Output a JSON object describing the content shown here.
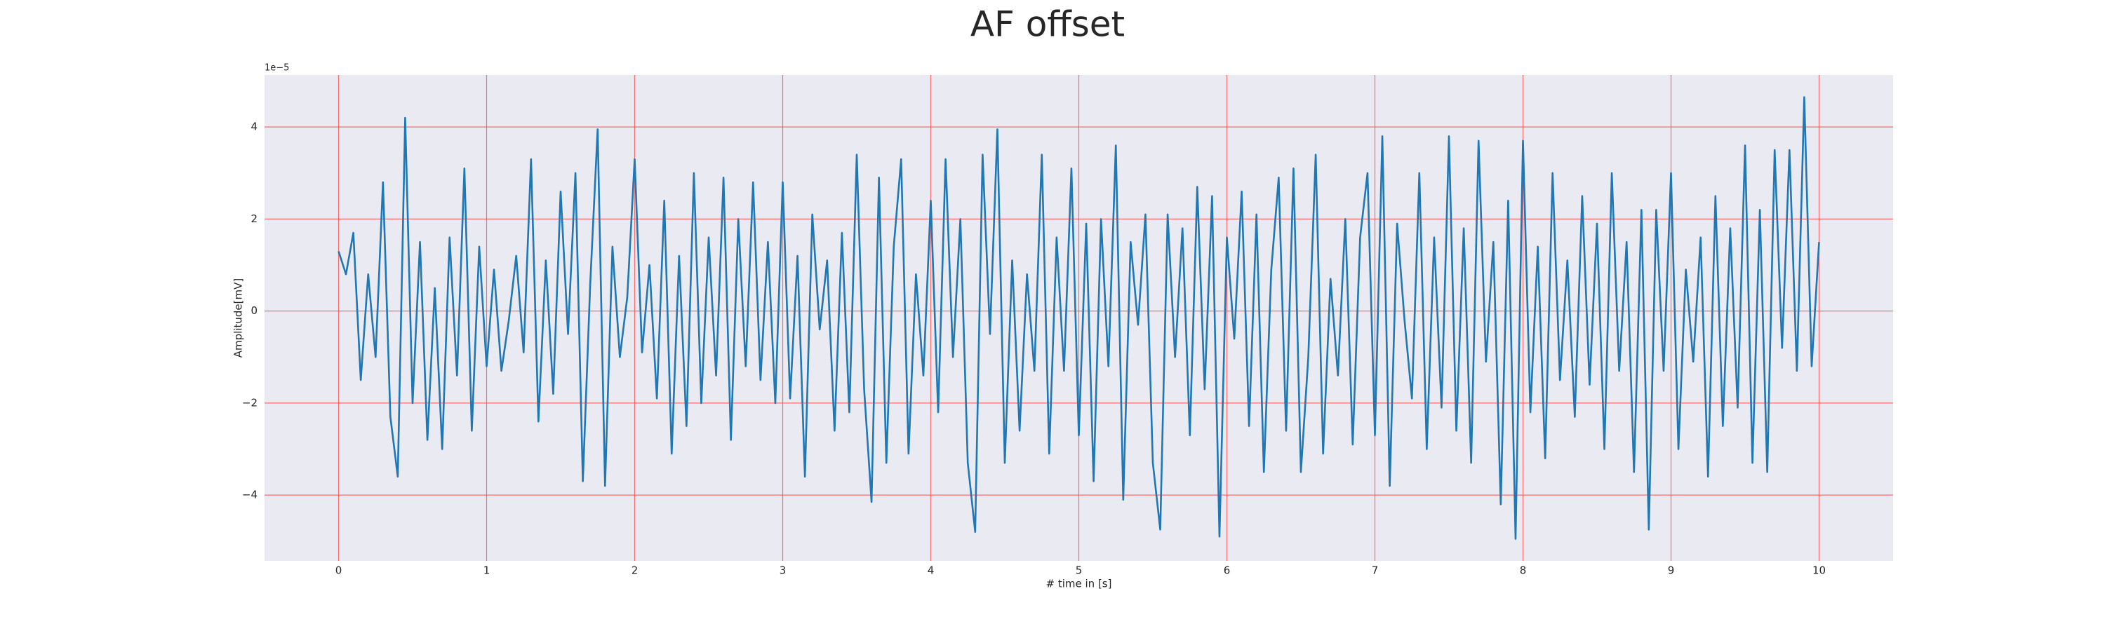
{
  "chart_data": {
    "type": "line",
    "title": "AF offset",
    "xlabel": "# time in [s]",
    "ylabel": "Amplitude[mV]",
    "offset_label": "1e−5",
    "xlim": [
      -0.5,
      10.5
    ],
    "ylim": [
      -5.43,
      5.13
    ],
    "xticks": [
      0,
      1,
      2,
      3,
      4,
      5,
      6,
      7,
      8,
      9,
      10
    ],
    "yticks": [
      {
        "value": -4,
        "label": "−4"
      },
      {
        "value": -2,
        "label": "−2"
      },
      0,
      2,
      4
    ],
    "grid": true,
    "grid_color": "#ff4d4d",
    "background": "#eaeaf2",
    "series": [
      {
        "color": "#1f77b4",
        "x": [
          0,
          0.05,
          0.1,
          0.15,
          0.2,
          0.25,
          0.3,
          0.35,
          0.4,
          0.45,
          0.5,
          0.55,
          0.6,
          0.65,
          0.7,
          0.75,
          0.8,
          0.85,
          0.9,
          0.95,
          1,
          1.05,
          1.1,
          1.15,
          1.2,
          1.25,
          1.3,
          1.35,
          1.4,
          1.45,
          1.5,
          1.55,
          1.6,
          1.65,
          1.7,
          1.75,
          1.8,
          1.85,
          1.9,
          1.95,
          2,
          2.05,
          2.1,
          2.15,
          2.2,
          2.25,
          2.3,
          2.35,
          2.4,
          2.45,
          2.5,
          2.55,
          2.6,
          2.65,
          2.7,
          2.75,
          2.8,
          2.85,
          2.9,
          2.95,
          3,
          3.05,
          3.1,
          3.15,
          3.2,
          3.25,
          3.3,
          3.35,
          3.4,
          3.45,
          3.5,
          3.55,
          3.6,
          3.65,
          3.7,
          3.75,
          3.8,
          3.85,
          3.9,
          3.95,
          4,
          4.05,
          4.1,
          4.15,
          4.2,
          4.25,
          4.3,
          4.35,
          4.4,
          4.45,
          4.5,
          4.55,
          4.6,
          4.65,
          4.7,
          4.75,
          4.8,
          4.85,
          4.9,
          4.95,
          5,
          5.05,
          5.1,
          5.15,
          5.2,
          5.25,
          5.3,
          5.35,
          5.4,
          5.45,
          5.5,
          5.55,
          5.6,
          5.65,
          5.7,
          5.75,
          5.8,
          5.85,
          5.9,
          5.95,
          6,
          6.05,
          6.1,
          6.15,
          6.2,
          6.25,
          6.3,
          6.35,
          6.4,
          6.45,
          6.5,
          6.55,
          6.6,
          6.65,
          6.7,
          6.75,
          6.8,
          6.85,
          6.9,
          6.95,
          7,
          7.05,
          7.1,
          7.15,
          7.2,
          7.25,
          7.3,
          7.35,
          7.4,
          7.45,
          7.5,
          7.55,
          7.6,
          7.65,
          7.7,
          7.75,
          7.8,
          7.85,
          7.9,
          7.95,
          8,
          8.05,
          8.1,
          8.15,
          8.2,
          8.25,
          8.3,
          8.35,
          8.4,
          8.45,
          8.5,
          8.55,
          8.6,
          8.65,
          8.7,
          8.75,
          8.8,
          8.85,
          8.9,
          8.95,
          9,
          9.05,
          9.1,
          9.15,
          9.2,
          9.25,
          9.3,
          9.35,
          9.4,
          9.45,
          9.5,
          9.55,
          9.6,
          9.65,
          9.7,
          9.75,
          9.8,
          9.85,
          9.9,
          9.95,
          10
        ],
        "values": [
          1.3,
          0.8,
          1.7,
          -1.5,
          0.8,
          -1.0,
          2.8,
          -2.3,
          -3.6,
          4.2,
          -2.0,
          1.5,
          -2.8,
          0.5,
          -3.0,
          1.6,
          -1.4,
          3.1,
          -2.6,
          1.4,
          -1.2,
          0.9,
          -1.3,
          -0.2,
          1.2,
          -0.9,
          3.3,
          -2.4,
          1.1,
          -1.8,
          2.6,
          -0.5,
          3.0,
          -3.7,
          0.6,
          3.95,
          -3.8,
          1.4,
          -1.0,
          0.3,
          3.3,
          -0.9,
          1.0,
          -1.9,
          2.4,
          -3.1,
          1.2,
          -2.5,
          3.0,
          -2.0,
          1.6,
          -1.4,
          2.9,
          -2.8,
          2.0,
          -1.2,
          2.8,
          -1.5,
          1.5,
          -2.0,
          2.8,
          -1.9,
          1.2,
          -3.6,
          2.1,
          -0.4,
          1.1,
          -2.6,
          1.7,
          -2.2,
          3.4,
          -1.7,
          -4.15,
          2.9,
          -3.3,
          1.4,
          3.3,
          -3.1,
          0.8,
          -1.4,
          2.4,
          -2.2,
          3.3,
          -1.0,
          2.0,
          -3.3,
          -4.8,
          3.4,
          -0.5,
          3.95,
          -3.3,
          1.1,
          -2.6,
          0.8,
          -1.3,
          3.4,
          -3.1,
          1.6,
          -1.3,
          3.1,
          -2.7,
          1.9,
          -3.7,
          2.0,
          -1.2,
          3.6,
          -4.1,
          1.5,
          -0.3,
          2.1,
          -3.3,
          -4.75,
          2.1,
          -1.0,
          1.8,
          -2.7,
          2.7,
          -1.7,
          2.5,
          -4.9,
          1.6,
          -0.6,
          2.6,
          -2.5,
          2.1,
          -3.5,
          0.9,
          2.9,
          -2.6,
          3.1,
          -3.5,
          -1.0,
          3.4,
          -3.1,
          0.7,
          -1.4,
          2.0,
          -2.9,
          1.6,
          3.0,
          -2.7,
          3.8,
          -3.8,
          1.9,
          -0.2,
          -1.9,
          3.0,
          -3.0,
          1.6,
          -2.1,
          3.8,
          -2.6,
          1.8,
          -3.3,
          3.7,
          -1.1,
          1.5,
          -4.2,
          2.4,
          -4.95,
          3.7,
          -2.2,
          1.4,
          -3.2,
          3.0,
          -1.5,
          1.1,
          -2.3,
          2.5,
          -1.6,
          1.9,
          -3.0,
          3.0,
          -1.3,
          1.5,
          -3.5,
          2.2,
          -4.75,
          2.2,
          -1.3,
          3.0,
          -3.0,
          0.9,
          -1.1,
          1.6,
          -3.6,
          2.5,
          -2.5,
          1.8,
          -2.1,
          3.6,
          -3.3,
          2.2,
          -3.5,
          3.5,
          -0.8,
          3.5,
          -1.3,
          4.65,
          -1.2,
          1.5
        ]
      }
    ]
  }
}
